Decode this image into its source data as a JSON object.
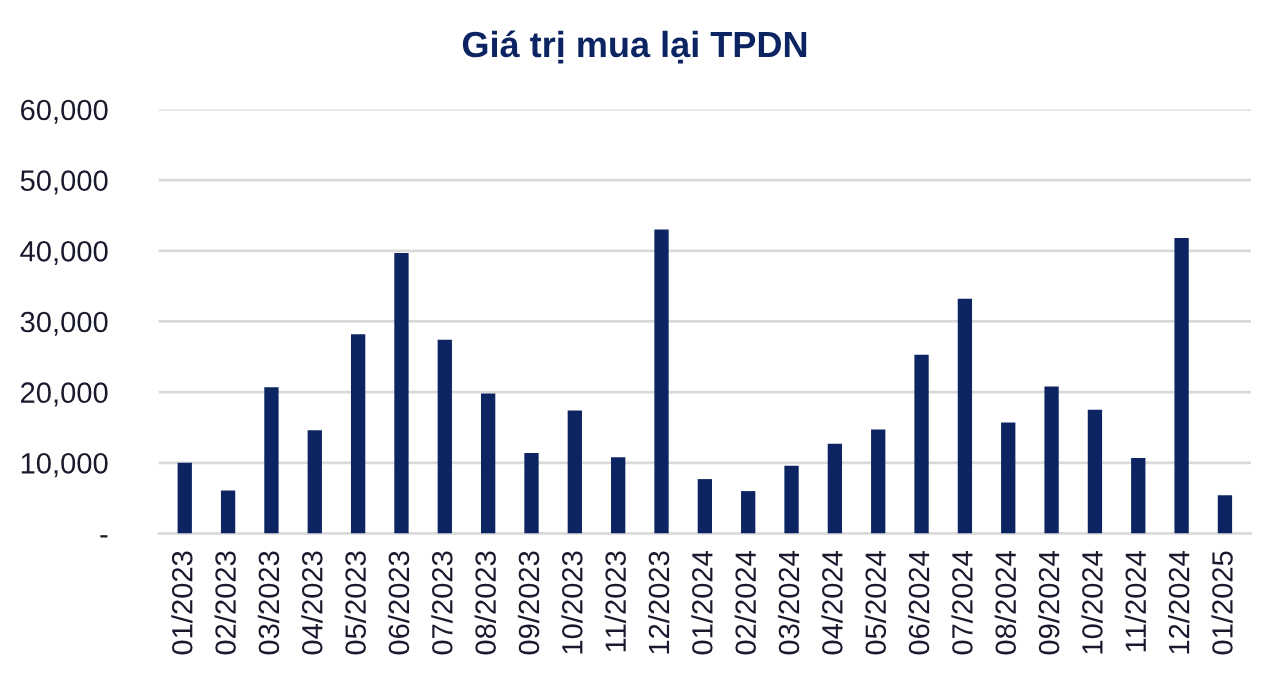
{
  "chart_data": {
    "type": "bar",
    "title": "Giá trị mua lại TPDN",
    "categories": [
      "01/2023",
      "02/2023",
      "03/2023",
      "04/2023",
      "05/2023",
      "06/2023",
      "07/2023",
      "08/2023",
      "09/2023",
      "10/2023",
      "11/2023",
      "12/2023",
      "01/2024",
      "02/2024",
      "03/2024",
      "04/2024",
      "05/2024",
      "06/2024",
      "07/2024",
      "08/2024",
      "09/2024",
      "10/2024",
      "11/2024",
      "12/2024",
      "01/2025"
    ],
    "values": [
      10000,
      6100,
      20700,
      14600,
      28200,
      39700,
      27400,
      19800,
      11400,
      17400,
      10800,
      43000,
      7700,
      6000,
      9600,
      12700,
      14700,
      25300,
      33200,
      15700,
      20800,
      17500,
      10700,
      41800,
      5400
    ],
    "color": "#0c2461",
    "ylim": [
      0,
      60000
    ],
    "yticks": [
      {
        "value": 0,
        "label": "-"
      },
      {
        "value": 10000,
        "label": "10,000"
      },
      {
        "value": 20000,
        "label": "20,000"
      },
      {
        "value": 30000,
        "label": "30,000"
      },
      {
        "value": 40000,
        "label": "40,000"
      },
      {
        "value": 50000,
        "label": "50,000"
      },
      {
        "value": 60000,
        "label": "60,000"
      }
    ],
    "grid": "y",
    "legend": false
  }
}
